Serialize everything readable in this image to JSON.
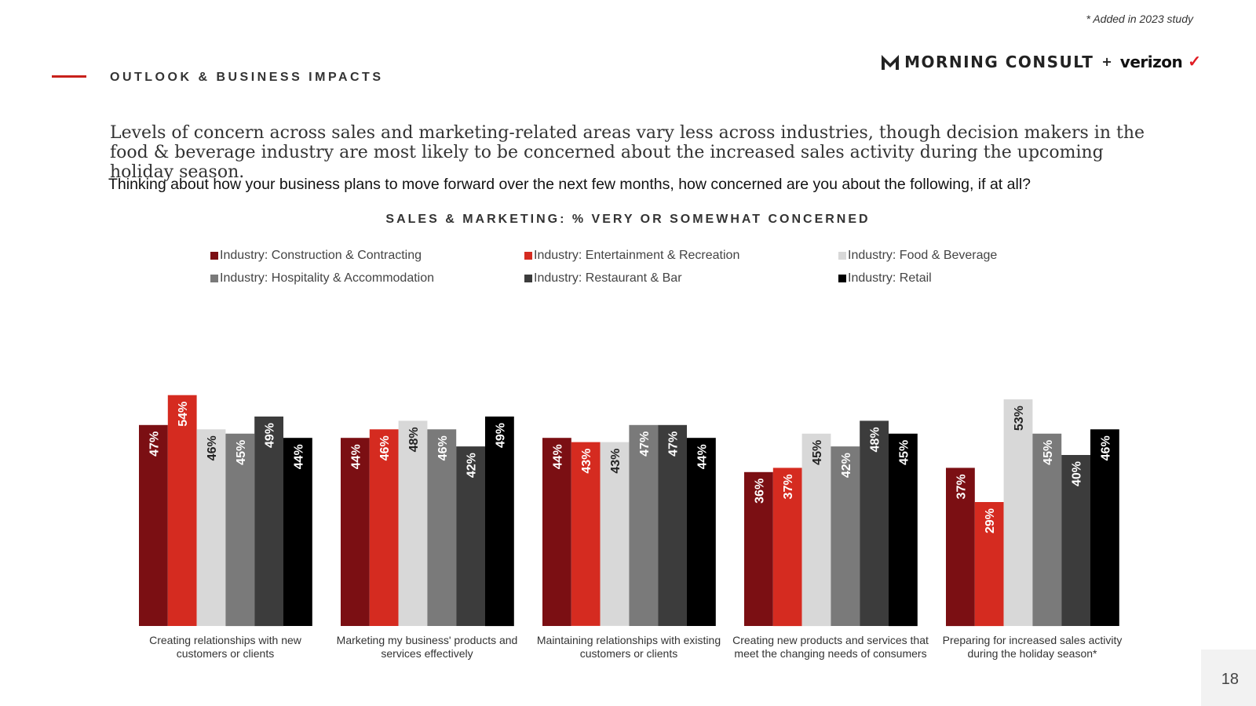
{
  "note": "* Added in 2023 study",
  "section_title": "OUTLOOK & BUSINESS IMPACTS",
  "logo": {
    "brand": "MORNING CONSULT",
    "plus": "+",
    "partner": "verizon",
    "check": "✓"
  },
  "headline": "Levels of concern across sales and marketing-related areas vary less across industries, though decision makers in the food & beverage industry are most likely to be concerned about the increased sales activity during the upcoming holiday season.",
  "question": "Thinking about how your business plans to move forward over the next few months, how concerned are you about the following, if at all?",
  "page_number": "18",
  "chart_data": {
    "type": "bar",
    "title": "SALES & MARKETING: % VERY OR SOMEWHAT CONCERNED",
    "categories": [
      "Creating relationships with new customers or clients",
      "Marketing my business' products and services effectively",
      "Maintaining relationships with existing customers or clients",
      "Creating new products and services that meet the changing needs of consumers",
      "Preparing for increased sales activity during the holiday season*"
    ],
    "series": [
      {
        "name": "Industry: Construction & Contracting",
        "color": "#7b0f13",
        "values": [
          47,
          44,
          44,
          36,
          37
        ],
        "labels": [
          "47%",
          "44%",
          "44%",
          "36%",
          "37%"
        ]
      },
      {
        "name": "Industry: Entertainment & Recreation",
        "color": "#d52b20",
        "values": [
          54,
          46,
          43,
          37,
          29
        ],
        "labels": [
          "54%",
          "46%",
          "43%",
          "37%",
          "29%"
        ]
      },
      {
        "name": "Industry: Food & Beverage",
        "color": "#d8d8d8",
        "values": [
          46,
          48,
          43,
          45,
          53
        ],
        "labels": [
          "46%",
          "48%",
          "43%",
          "45%",
          "53%"
        ]
      },
      {
        "name": "Industry: Hospitality & Accommodation",
        "color": "#7a7a7a",
        "values": [
          45,
          46,
          47,
          42,
          45
        ],
        "labels": [
          "45%",
          "46%",
          "47%",
          "42%",
          "45%"
        ]
      },
      {
        "name": "Industry: Restaurant & Bar",
        "color": "#3c3c3c",
        "values": [
          49,
          42,
          47,
          48,
          40
        ],
        "labels": [
          "49%",
          "42%",
          "47%",
          "48%",
          "40%"
        ]
      },
      {
        "name": "Industry: Retail",
        "color": "#000000",
        "values": [
          44,
          49,
          44,
          45,
          46
        ],
        "labels": [
          "44%",
          "49%",
          "44%",
          "45%",
          "46%"
        ]
      }
    ],
    "label_colors": [
      "#ffffff",
      "#ffffff",
      "#222222",
      "#ffffff",
      "#ffffff",
      "#ffffff"
    ],
    "ylim": [
      0,
      100
    ],
    "grid": false,
    "legend_position": "top"
  }
}
